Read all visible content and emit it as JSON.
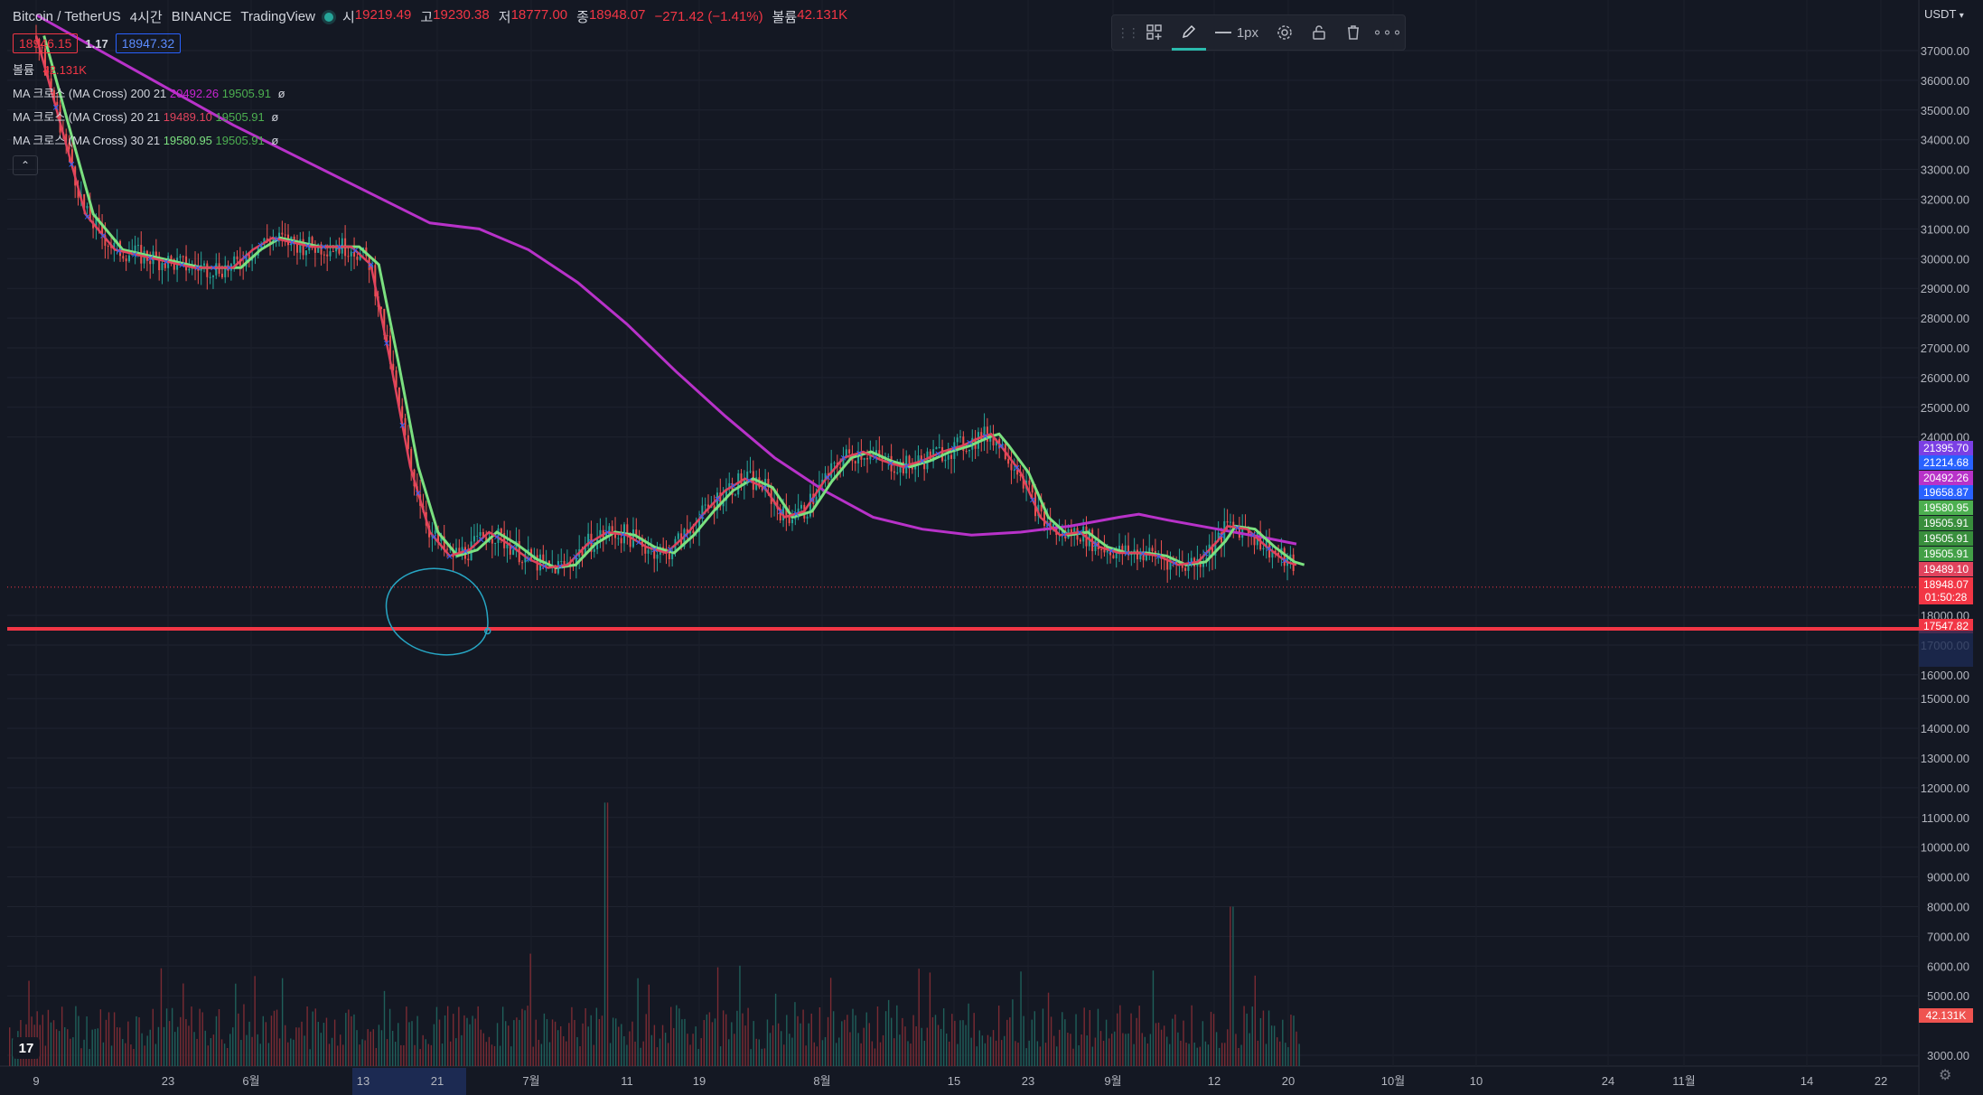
{
  "header": {
    "symbol": "Bitcoin / TetherUS",
    "interval": "4시간",
    "exchange": "BINANCE",
    "source": "TradingView",
    "ohlc": [
      {
        "label": "시",
        "value": "19219.49"
      },
      {
        "label": "고",
        "value": "19230.38"
      },
      {
        "label": "저",
        "value": "18777.00"
      },
      {
        "label": "종",
        "value": "18948.07"
      }
    ],
    "change": "−271.42 (−1.41%)",
    "volume_label": "볼륨",
    "volume_value": "42.131K"
  },
  "quote": {
    "bid": "18946.15",
    "spread": "1.17",
    "ask": "18947.32"
  },
  "volume_legend": {
    "label": "볼륨",
    "value": "42.131K"
  },
  "indicators": [
    {
      "name": "MA 크로스 (MA Cross)",
      "params": "200 21",
      "v1": "20492.26",
      "v2": "19505.91",
      "suffix": "ø"
    },
    {
      "name": "MA 크로스 (MA Cross)",
      "params": "20 21",
      "v1": "19489.10",
      "v2": "19505.91",
      "suffix": "ø"
    },
    {
      "name": "MA 크로스 (MA Cross)",
      "params": "30 21",
      "v1": "19580.95",
      "v2": "19505.91",
      "suffix": "ø"
    }
  ],
  "toolbar": {
    "grip_icon": "grip-icon",
    "items": [
      "add-template-icon",
      "pencil-icon",
      "line-width-icon",
      "settings-icon",
      "lock-icon",
      "trash-icon",
      "more-icon"
    ],
    "line_width_label": "1px"
  },
  "currency_label": "USDT",
  "colors": {
    "background": "#141823",
    "up": "#26a69a",
    "down": "#ef5350",
    "ma200": "#b832c9",
    "ma_fast_red": "#e0435d",
    "ma_fast_green": "#7be07f",
    "support_line": "#f23645",
    "circle": "#27a6c4",
    "cross_marker": "#2962ff"
  },
  "chart_data": {
    "type": "candlestick",
    "symbol": "BTCUSDT",
    "interval": "4시간",
    "y_axis": {
      "ticks": [
        37000,
        36000,
        35000,
        34000,
        33000,
        32000,
        31000,
        30000,
        29000,
        28000,
        27000,
        26000,
        25000,
        24000,
        18000,
        17000,
        16000,
        15000,
        14000,
        13000,
        12000,
        11000,
        10000,
        9000,
        8000,
        7000,
        6000,
        5000,
        3000
      ],
      "tick_labels": [
        "37000.00",
        "36000.00",
        "35000.00",
        "34000.00",
        "33000.00",
        "32000.00",
        "31000.00",
        "30000.00",
        "29000.00",
        "28000.00",
        "27000.00",
        "26000.00",
        "25000.00",
        "24000.00",
        "18000.00",
        "17000.00",
        "16000.00",
        "15000.00",
        "14000.00",
        "13000.00",
        "12000.00",
        "11000.00",
        "10000.00",
        "9000.00",
        "8000.00",
        "7000.00",
        "6000.00",
        "5000.00",
        "3000.00"
      ]
    },
    "x_axis": {
      "labels": [
        "9",
        "23",
        "6월",
        "13",
        "21",
        "7월",
        "11",
        "19",
        "8월",
        "15",
        "23",
        "9월",
        "12",
        "20",
        "10월",
        "10",
        "24",
        "11월",
        "14",
        "22"
      ],
      "highlight_range": [
        "13",
        "21"
      ]
    },
    "price_tags": [
      {
        "value": "21395.70",
        "color": "#7b3fe4"
      },
      {
        "value": "21214.68",
        "color": "#2962ff"
      },
      {
        "value": "20492.26",
        "color": "#b832c9"
      },
      {
        "value": "19658.87",
        "color": "#2962ff"
      },
      {
        "value": "19580.95",
        "color": "#4caf50"
      },
      {
        "value": "19505.91",
        "color": "#388e3c"
      },
      {
        "value": "19505.91",
        "color": "#388e3c"
      },
      {
        "value": "19505.91",
        "color": "#43a047"
      },
      {
        "value": "19489.10",
        "color": "#e0435d"
      },
      {
        "value": "18948.07",
        "color": "#f23645"
      },
      {
        "value": "01:50:28",
        "color": "#f23645"
      },
      {
        "value": "17547.82",
        "color": "#f23645"
      }
    ],
    "volume_tag": {
      "value": "42.131K",
      "color": "#ef5350"
    },
    "horizontal_line": 17547.82,
    "last_price": 18948.07,
    "ma200_path": [
      [
        0,
        38200
      ],
      [
        20,
        34500
      ],
      [
        40,
        31200
      ],
      [
        45,
        31000
      ],
      [
        50,
        30300
      ],
      [
        55,
        29200
      ],
      [
        60,
        27800
      ],
      [
        65,
        26200
      ],
      [
        70,
        24700
      ],
      [
        75,
        23300
      ],
      [
        80,
        22200
      ],
      [
        85,
        21300
      ],
      [
        90,
        20900
      ],
      [
        95,
        20700
      ],
      [
        100,
        20800
      ],
      [
        105,
        21000
      ],
      [
        110,
        21300
      ],
      [
        112,
        21400
      ],
      [
        115,
        21200
      ],
      [
        120,
        20900
      ],
      [
        125,
        20600
      ],
      [
        128,
        20400
      ]
    ],
    "ma_fast_path": [
      [
        0,
        37500
      ],
      [
        5,
        31500
      ],
      [
        8,
        30300
      ],
      [
        12,
        30000
      ],
      [
        16,
        29700
      ],
      [
        20,
        29700
      ],
      [
        22,
        30300
      ],
      [
        24,
        30700
      ],
      [
        28,
        30400
      ],
      [
        32,
        30400
      ],
      [
        34,
        29800
      ],
      [
        36,
        26500
      ],
      [
        38,
        23000
      ],
      [
        40,
        20800
      ],
      [
        42,
        20000
      ],
      [
        44,
        20200
      ],
      [
        46,
        20800
      ],
      [
        48,
        20400
      ],
      [
        50,
        19900
      ],
      [
        52,
        19600
      ],
      [
        54,
        19700
      ],
      [
        56,
        20400
      ],
      [
        58,
        20800
      ],
      [
        60,
        20700
      ],
      [
        62,
        20300
      ],
      [
        64,
        20100
      ],
      [
        66,
        20700
      ],
      [
        68,
        21500
      ],
      [
        70,
        22200
      ],
      [
        72,
        22600
      ],
      [
        74,
        22300
      ],
      [
        76,
        21300
      ],
      [
        78,
        21500
      ],
      [
        80,
        22500
      ],
      [
        82,
        23300
      ],
      [
        84,
        23500
      ],
      [
        86,
        23200
      ],
      [
        88,
        23000
      ],
      [
        90,
        23200
      ],
      [
        92,
        23500
      ],
      [
        94,
        23700
      ],
      [
        96,
        24000
      ],
      [
        97,
        24100
      ],
      [
        98,
        23700
      ],
      [
        100,
        22800
      ],
      [
        102,
        21300
      ],
      [
        104,
        20700
      ],
      [
        106,
        20800
      ],
      [
        108,
        20300
      ],
      [
        110,
        20100
      ],
      [
        112,
        20100
      ],
      [
        114,
        20000
      ],
      [
        116,
        19700
      ],
      [
        118,
        19800
      ],
      [
        120,
        20500
      ],
      [
        121,
        21000
      ],
      [
        123,
        20900
      ],
      [
        125,
        20300
      ],
      [
        127,
        19800
      ],
      [
        128,
        19700
      ]
    ],
    "support_circle_center": [
      42,
      18200
    ],
    "volume_peak": 11500,
    "x_span": 128
  }
}
